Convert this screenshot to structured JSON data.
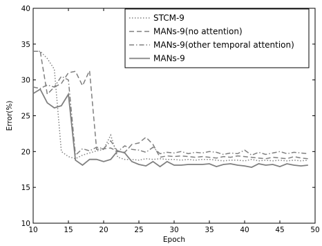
{
  "chart_data": {
    "type": "line",
    "title": "",
    "xlabel": "Epoch",
    "ylabel": "Error(%)",
    "xlim": [
      10,
      50
    ],
    "ylim": [
      10,
      40
    ],
    "xticks": [
      10,
      15,
      20,
      25,
      30,
      35,
      40,
      45,
      50
    ],
    "yticks": [
      10,
      15,
      20,
      25,
      30,
      35,
      40
    ],
    "grid": false,
    "legend_position": "top-right",
    "x": [
      10,
      11,
      12,
      13,
      14,
      15,
      16,
      17,
      18,
      19,
      20,
      21,
      22,
      23,
      24,
      25,
      26,
      27,
      28,
      29,
      30,
      31,
      32,
      33,
      34,
      35,
      36,
      37,
      38,
      39,
      40,
      41,
      42,
      43,
      44,
      45,
      46,
      47,
      48,
      49
    ],
    "series": [
      {
        "name": "STCM-9",
        "style": "dotted",
        "color": "#7f7f7f",
        "values": [
          34.0,
          34.0,
          33.0,
          31.5,
          20.0,
          19.3,
          19.0,
          19.5,
          19.8,
          20.1,
          20.3,
          22.3,
          19.2,
          18.9,
          18.9,
          18.8,
          19.0,
          18.9,
          19.0,
          18.9,
          18.9,
          18.8,
          18.9,
          18.8,
          18.9,
          18.9,
          18.8,
          18.7,
          18.8,
          18.8,
          18.7,
          18.9,
          18.7,
          18.8,
          18.7,
          18.8,
          18.7,
          18.8,
          18.7,
          18.8
        ]
      },
      {
        "name": "MANs-9(no attention)",
        "style": "dashed",
        "color": "#7f7f7f",
        "values": [
          34.0,
          34.0,
          28.0,
          29.0,
          29.5,
          31.0,
          31.2,
          29.2,
          31.3,
          20.3,
          20.4,
          20.5,
          20.0,
          19.9,
          21.0,
          21.2,
          22.0,
          21.0,
          19.2,
          19.4,
          19.3,
          19.4,
          19.3,
          19.2,
          19.3,
          19.2,
          19.1,
          19.3,
          19.2,
          19.4,
          19.3,
          19.2,
          19.1,
          19.0,
          19.2,
          19.1,
          19.0,
          19.3,
          19.1,
          19.0
        ]
      },
      {
        "name": "MANs-9(other temporal attention)",
        "style": "dashdot",
        "color": "#7f7f7f",
        "values": [
          29.0,
          28.8,
          29.3,
          29.0,
          30.5,
          30.0,
          19.5,
          20.4,
          20.1,
          20.6,
          20.4,
          21.5,
          20.0,
          20.8,
          20.3,
          20.2,
          19.9,
          20.6,
          19.7,
          19.9,
          19.8,
          20.0,
          19.7,
          19.9,
          19.8,
          20.0,
          19.9,
          19.6,
          19.8,
          19.7,
          20.2,
          19.5,
          19.9,
          19.6,
          19.8,
          20.0,
          19.7,
          19.9,
          19.8,
          19.7
        ]
      },
      {
        "name": "MANs-9",
        "style": "solid",
        "color": "#7f7f7f",
        "values": [
          28.1,
          28.7,
          26.8,
          26.1,
          26.4,
          28.0,
          18.8,
          18.1,
          18.9,
          18.9,
          18.6,
          18.9,
          20.1,
          19.8,
          18.6,
          18.2,
          18.0,
          18.6,
          17.9,
          18.6,
          18.1,
          18.1,
          18.2,
          18.2,
          18.2,
          18.3,
          17.9,
          18.2,
          18.3,
          18.1,
          18.0,
          17.8,
          18.3,
          18.1,
          18.2,
          17.9,
          18.3,
          18.1,
          18.0,
          18.1
        ]
      }
    ]
  }
}
